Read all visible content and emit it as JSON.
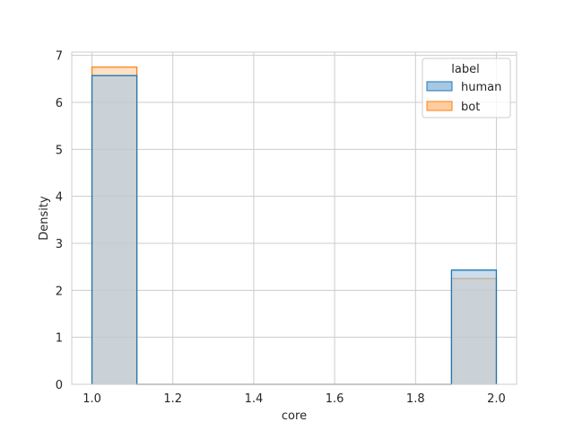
{
  "chart_data": {
    "type": "histogram",
    "xlabel": "core",
    "ylabel": "Density",
    "xlim": [
      0.95,
      2.05
    ],
    "ylim": [
      0,
      7.07
    ],
    "xticks": [
      "1.0",
      "1.2",
      "1.4",
      "1.6",
      "1.8",
      "2.0"
    ],
    "xtick_values": [
      1.0,
      1.2,
      1.4,
      1.6,
      1.8,
      2.0
    ],
    "yticks": [
      "0",
      "1",
      "2",
      "3",
      "4",
      "5",
      "6",
      "7"
    ],
    "ytick_values": [
      0,
      1,
      2,
      3,
      4,
      5,
      6,
      7
    ],
    "grid": true,
    "legend_title": "label",
    "legend_position": "top-right",
    "bin_edges": [
      1.0,
      1.111,
      1.222,
      1.333,
      1.444,
      1.556,
      1.667,
      1.778,
      1.889,
      2.0
    ],
    "series": [
      {
        "name": "human",
        "color": "#1f77b4",
        "fill": "#a6c8e3",
        "values": [
          6.57,
          0,
          0,
          0,
          0,
          0,
          0,
          0,
          2.43
        ]
      },
      {
        "name": "bot",
        "color": "#ff7f0e",
        "fill": "#ffcda0",
        "values": [
          6.75,
          0,
          0,
          0,
          0,
          0,
          0,
          0,
          2.25
        ]
      }
    ]
  }
}
